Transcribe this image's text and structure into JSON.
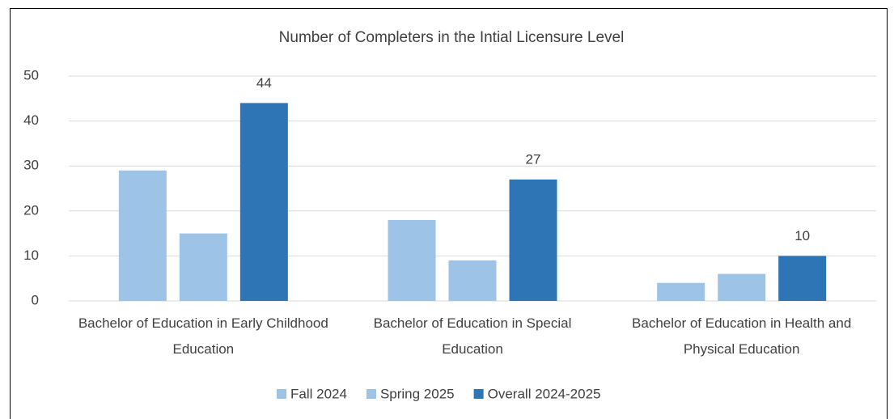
{
  "chart_data": {
    "type": "bar",
    "title": "Number of Completers in the Intial Licensure Level",
    "categories": [
      "Bachelor of Education in Early Childhood Education",
      "Bachelor of Education in Special Education",
      "Bachelor of Education in Health and Physical Education"
    ],
    "series": [
      {
        "name": "Fall 2024",
        "color": "#9dc3e6",
        "values": [
          29,
          18,
          4
        ]
      },
      {
        "name": "Spring 2025",
        "color": "#9dc3e6",
        "values": [
          15,
          9,
          6
        ]
      },
      {
        "name": "Overall 2024-2025",
        "color": "#2e75b6",
        "values": [
          44,
          27,
          10
        ],
        "data_labels": true
      }
    ],
    "ylim": [
      0,
      50
    ],
    "yticks": [
      0,
      10,
      20,
      30,
      40,
      50
    ],
    "grid": true,
    "legend": "bottom"
  }
}
